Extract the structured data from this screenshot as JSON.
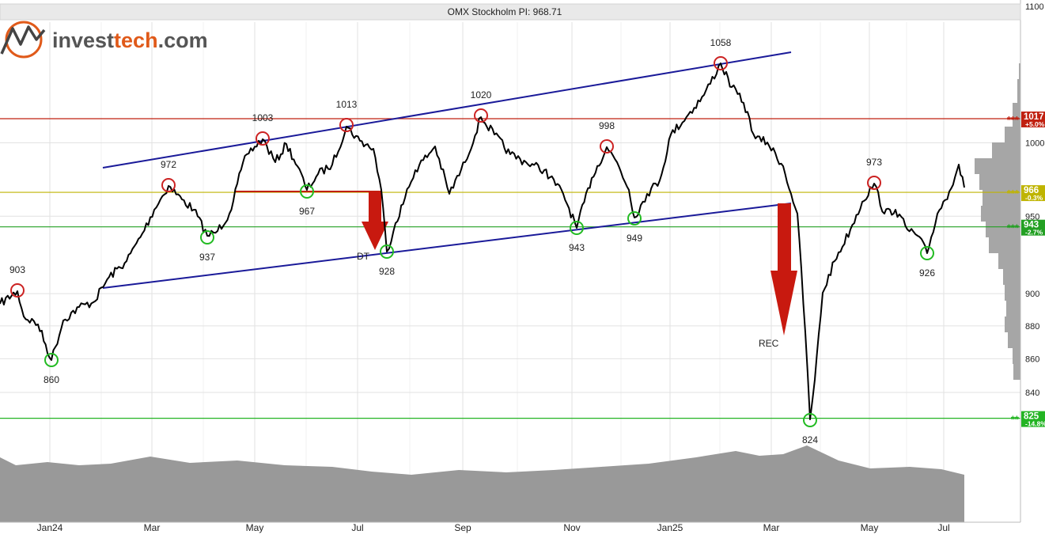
{
  "header": {
    "title": "OMX Stockholm PI: 968.71"
  },
  "logo": {
    "prefix": "invest",
    "accent": "tech",
    "suffix": ".com"
  },
  "colors": {
    "price_line": "#000000",
    "channel": "#1a1a99",
    "resistance": "#c02010",
    "support_near": "#bfb400",
    "support_mid": "#23a023",
    "support_low": "#23b423",
    "signal_arrow": "#c8190f",
    "volume": "#999999",
    "grid": "#e2e2e2",
    "logo_accent": "#e05a1a",
    "logo_text": "#555555"
  },
  "chart_data": {
    "type": "line",
    "title": "OMX Stockholm PI: 968.71",
    "x_ticks": [
      "Jan24",
      "Mar",
      "May",
      "Jul",
      "Sep",
      "Nov",
      "Jan25",
      "Mar",
      "May",
      "Jul"
    ],
    "y_ticks": [
      1100,
      1000,
      950,
      900,
      880,
      860,
      840
    ],
    "grid": true,
    "series": [
      {
        "name": "",
        "x": [
          "2023-12",
          "2024-01",
          "2024-02",
          "2024-03",
          "2024-04",
          "2024-05",
          "2024-06",
          "2024-07",
          "2024-08",
          "2024-09",
          "2024-10",
          "2024-11",
          "2024-12",
          "2025-01",
          "2025-02",
          "2025-03",
          "2025-04",
          "2025-05",
          "2025-06",
          "2025-07"
        ],
        "values": [
          903,
          860,
          900,
          972,
          937,
          1003,
          967,
          1013,
          928,
          1020,
          985,
          943,
          998,
          949,
          1058,
          960,
          824,
          973,
          926,
          968.71
        ]
      }
    ],
    "pivots": [
      {
        "value": 903,
        "kind": "high"
      },
      {
        "value": 860,
        "kind": "low"
      },
      {
        "value": 972,
        "kind": "high"
      },
      {
        "value": 937,
        "kind": "low"
      },
      {
        "value": 1003,
        "kind": "high"
      },
      {
        "value": 967,
        "kind": "low"
      },
      {
        "value": 1013,
        "kind": "high"
      },
      {
        "value": 928,
        "kind": "low"
      },
      {
        "value": 1020,
        "kind": "high"
      },
      {
        "value": 943,
        "kind": "low"
      },
      {
        "value": 998,
        "kind": "high"
      },
      {
        "value": 949,
        "kind": "low"
      },
      {
        "value": 1058,
        "kind": "high"
      },
      {
        "value": 824,
        "kind": "low"
      },
      {
        "value": 973,
        "kind": "high"
      },
      {
        "value": 926,
        "kind": "low"
      }
    ],
    "levels": [
      {
        "value": 1017,
        "stars": "***",
        "label": "1017",
        "change": "+5.0%",
        "kind": "resistance"
      },
      {
        "value": 966,
        "stars": "***",
        "label": "966",
        "change": "-0.3%",
        "kind": "support_near"
      },
      {
        "value": 943,
        "stars": "***",
        "label": "943",
        "change": "-2.7%",
        "kind": "support_mid"
      },
      {
        "value": 825,
        "stars": "**",
        "label": "825",
        "change": "-14.8%",
        "kind": "support_low"
      }
    ],
    "annotations": [
      "DT",
      "REC"
    ]
  }
}
